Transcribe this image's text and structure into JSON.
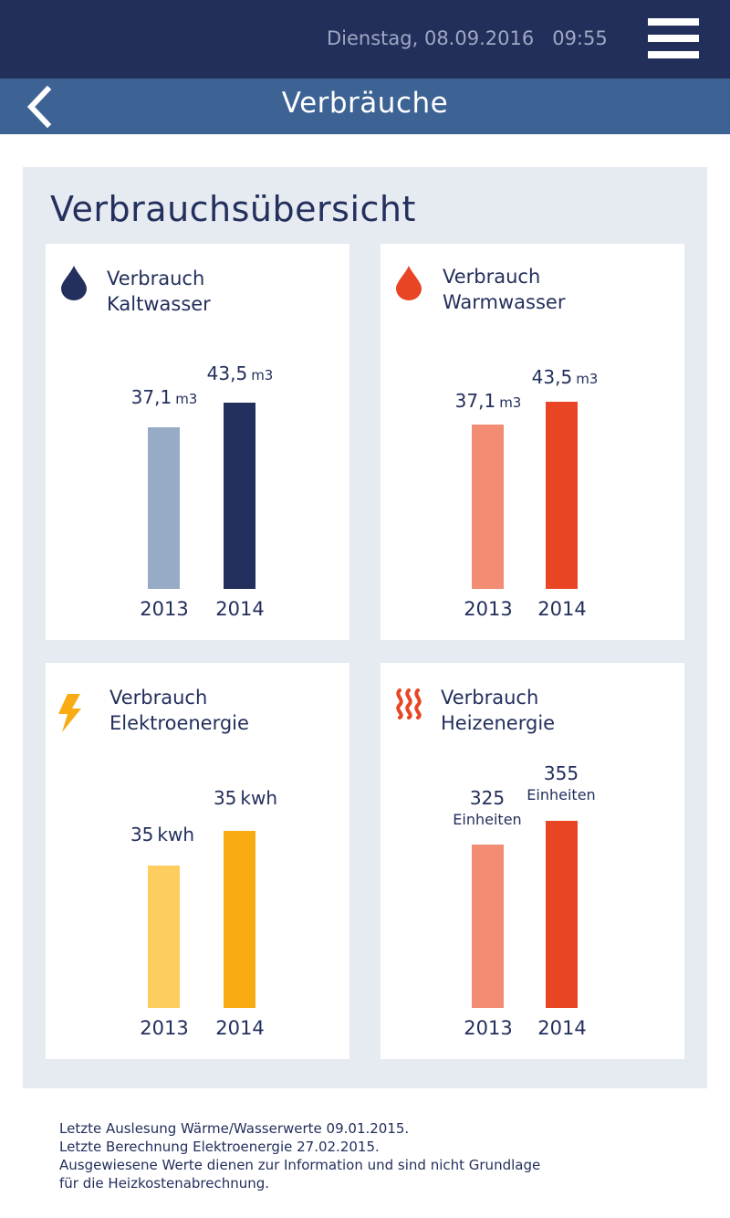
{
  "status_bar": {
    "date": "Dienstag, 08.09.2016",
    "time": "09:55"
  },
  "header": {
    "title": "Verbräuche",
    "back_icon": "chevron-left-icon",
    "menu_icon": "hamburger-menu-icon"
  },
  "main": {
    "heading": "Verbrauchsübersicht",
    "cards": [
      {
        "id": "kaltwasser",
        "label_line1": "Verbrauch",
        "label_line2": "Kaltwasser",
        "icon": "water-drop-icon",
        "icon_color": "#232f5c",
        "bars": [
          {
            "year": "2013",
            "value": 37.1,
            "value_label": "37,1",
            "unit": "m3",
            "color": "#97abc6"
          },
          {
            "year": "2014",
            "value": 43.5,
            "value_label": "43,5",
            "unit": "m3",
            "color": "#232f5c"
          }
        ]
      },
      {
        "id": "warmwasser",
        "label_line1": "Verbrauch",
        "label_line2": "Warmwasser",
        "icon": "water-drop-icon",
        "icon_color": "#e84524",
        "bars": [
          {
            "year": "2013",
            "value": 37.1,
            "value_label": "37,1",
            "unit": "m3",
            "color": "#f28c72"
          },
          {
            "year": "2014",
            "value": 43.5,
            "value_label": "43,5",
            "unit": "m3",
            "color": "#e84524"
          }
        ]
      },
      {
        "id": "elektroenergie",
        "label_line1": "Verbrauch",
        "label_line2": "Elektroenergie",
        "icon": "lightning-bolt-icon",
        "icon_color": "#f8ab12",
        "bars": [
          {
            "year": "2013",
            "value": 35,
            "value_label": "35",
            "unit": "kwh",
            "color": "#fdcd60"
          },
          {
            "year": "2014",
            "value": 35,
            "value_label": "35",
            "unit": "kwh",
            "color": "#f8ab12"
          }
        ]
      },
      {
        "id": "heizenergie",
        "label_line1": "Verbrauch",
        "label_line2": "Heizenergie",
        "icon": "heat-waves-icon",
        "icon_color": "#e84524",
        "bars": [
          {
            "year": "2013",
            "value": 325,
            "value_label": "325",
            "unit": "Einheiten",
            "color": "#f28c72"
          },
          {
            "year": "2014",
            "value": 355,
            "value_label": "355",
            "unit": "Einheiten",
            "color": "#e84524"
          }
        ]
      }
    ]
  },
  "footer": {
    "line1": "Letzte Auslesung Wärme/Wasserwerte 09.01.2015.",
    "line2": "Letzte Berechnung Elektroenergie 27.02.2015.",
    "line3": "Ausgewiesene Werte dienen zur Information und sind nicht Grundlage",
    "line4": "für die Heizkostenabrechnung."
  }
}
